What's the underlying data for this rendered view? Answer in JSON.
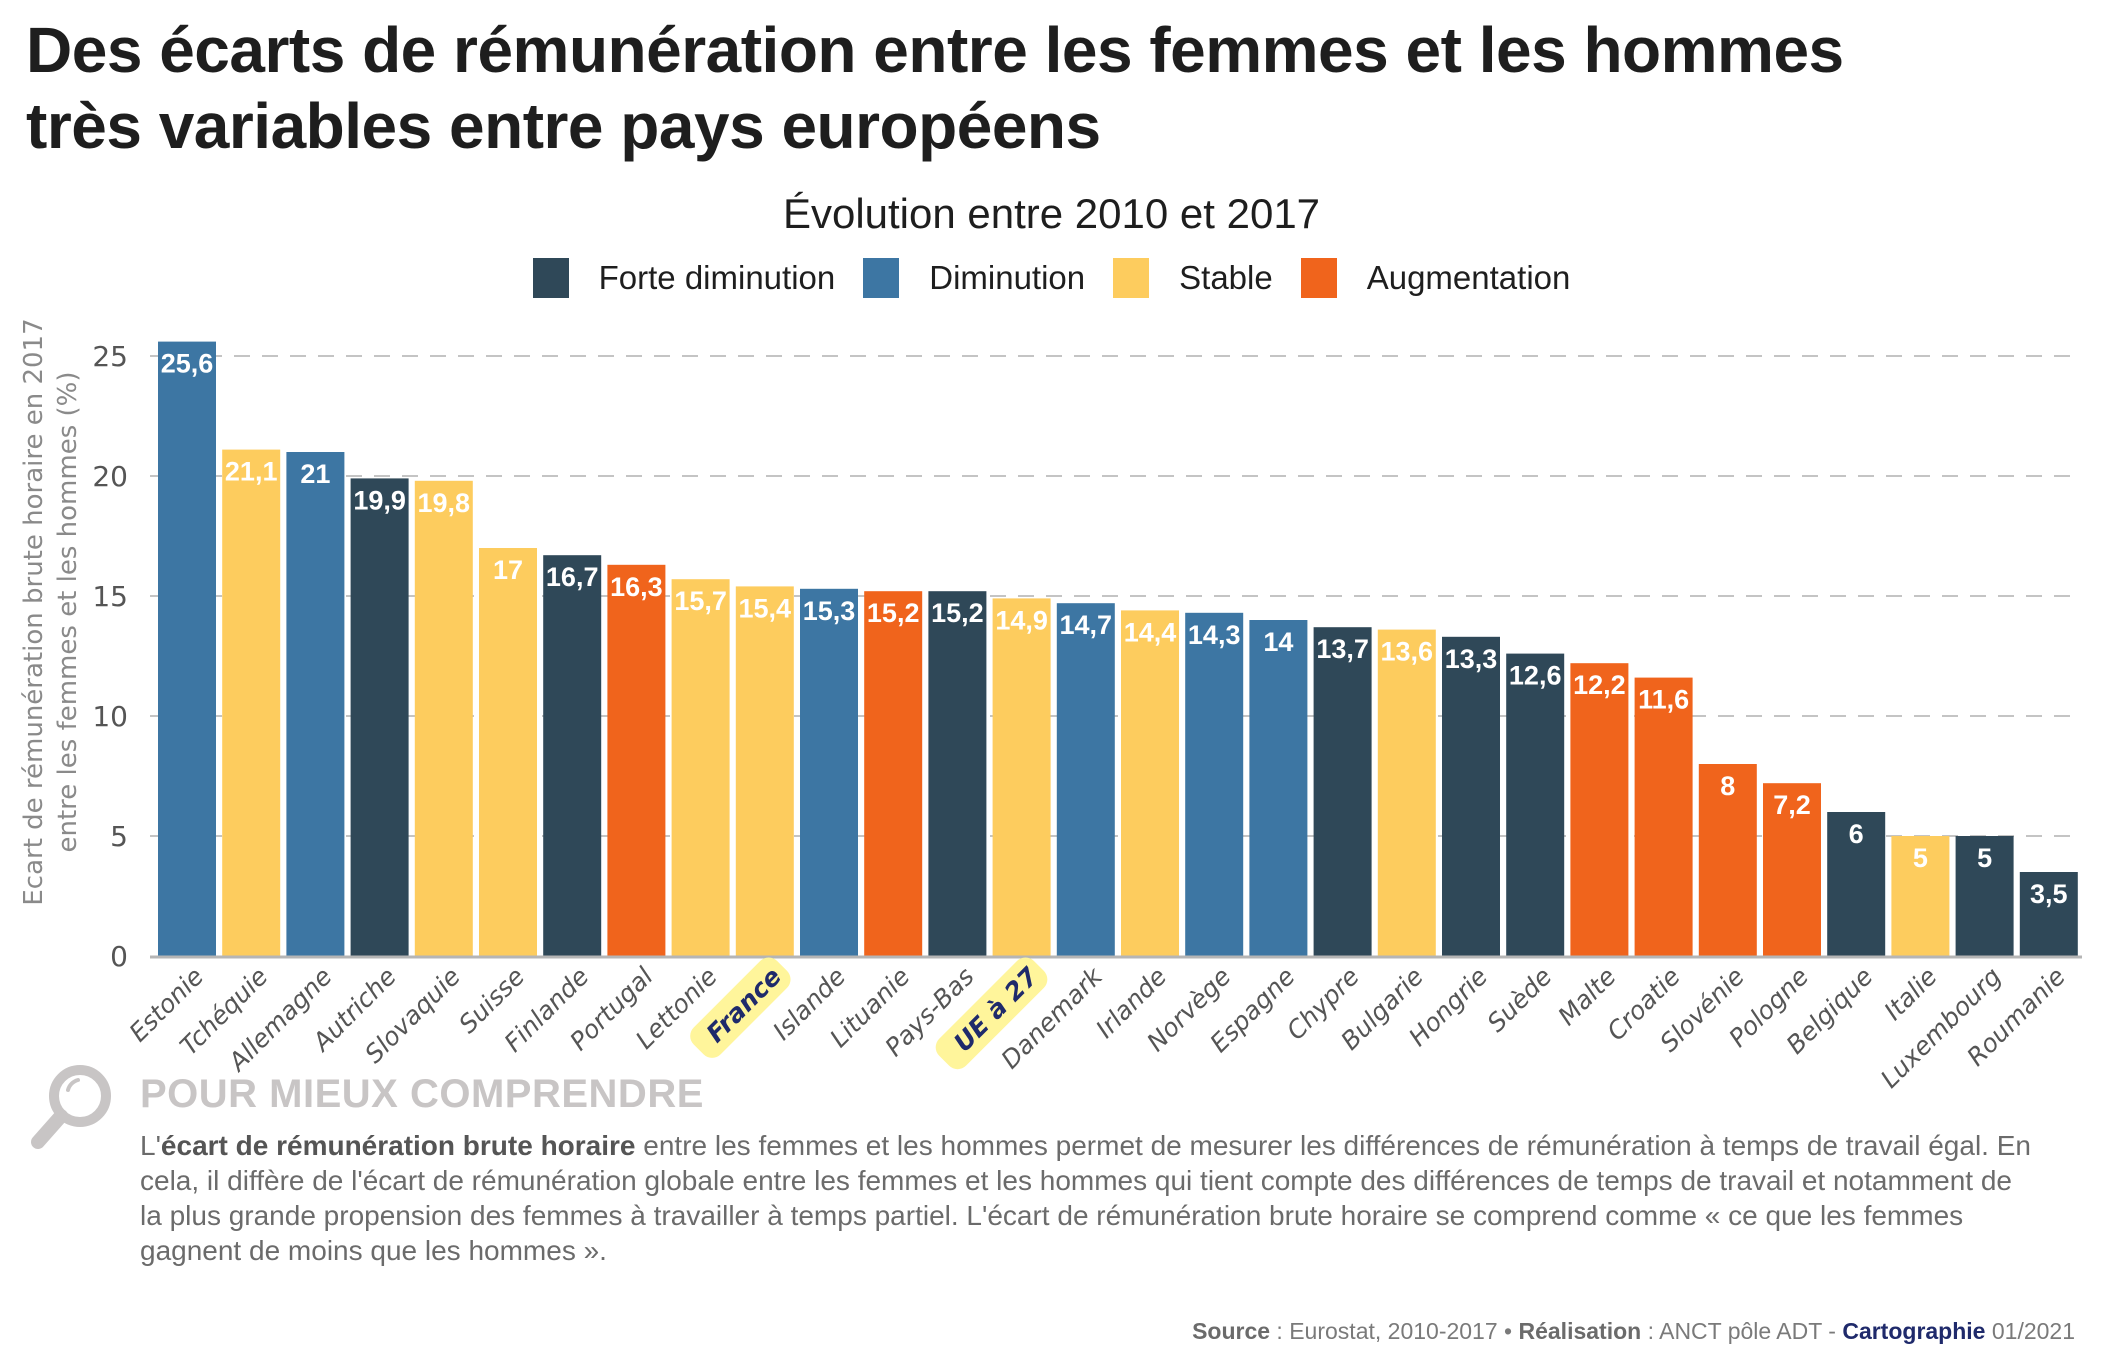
{
  "header": {
    "title_line1": "Des écarts de rémunération entre les femmes et les hommes",
    "title_line2": "très variables entre pays européens"
  },
  "chart_data": {
    "type": "bar",
    "title": "Évolution entre 2010 et 2017",
    "ylabel_line1": "Ecart de rémunération brute horaire en 2017",
    "ylabel_line2": "entre les femmes et les hommes (%)",
    "xlabel": "",
    "ylim": [
      0,
      25
    ],
    "yticks": [
      0,
      5,
      10,
      15,
      20,
      25
    ],
    "grid": "horizontal dashed",
    "legend_position": "top-center",
    "legend": [
      {
        "key": "forte_diminution",
        "label": "Forte diminution",
        "color": "#2f4858"
      },
      {
        "key": "diminution",
        "label": "Diminution",
        "color": "#3d76a3"
      },
      {
        "key": "stable",
        "label": "Stable",
        "color": "#fdcc5e"
      },
      {
        "key": "augmentation",
        "label": "Augmentation",
        "color": "#f0641c"
      }
    ],
    "highlight_color": "#fff59b",
    "highlight_text_color": "#1f2a6b",
    "categories": [
      "Estonie",
      "Tchéquie",
      "Allemagne",
      "Autriche",
      "Slovaquie",
      "Suisse",
      "Finlande",
      "Portugal",
      "Lettonie",
      "France",
      "Islande",
      "Lituanie",
      "Pays-Bas",
      "UE à 27",
      "Danemark",
      "Irlande",
      "Norvège",
      "Espagne",
      "Chypre",
      "Bulgarie",
      "Hongrie",
      "Suède",
      "Malte",
      "Croatie",
      "Slovénie",
      "Pologne",
      "Belgique",
      "Italie",
      "Luxembourg",
      "Roumanie"
    ],
    "values": [
      25.6,
      21.1,
      21,
      19.9,
      19.8,
      17,
      16.7,
      16.3,
      15.7,
      15.4,
      15.3,
      15.2,
      15.2,
      14.9,
      14.7,
      14.4,
      14.3,
      14,
      13.7,
      13.6,
      13.3,
      12.6,
      12.2,
      11.6,
      8,
      7.2,
      6,
      5,
      5,
      3.5
    ],
    "value_labels": [
      "25,6",
      "21,1",
      "21",
      "19,9",
      "19,8",
      "17",
      "16,7",
      "16,3",
      "15,7",
      "15,4",
      "15,3",
      "15,2",
      "15,2",
      "14,9",
      "14,7",
      "14,4",
      "14,3",
      "14",
      "13,7",
      "13,6",
      "13,3",
      "12,6",
      "12,2",
      "11,6",
      "8",
      "7,2",
      "6",
      "5",
      "5",
      "3,5"
    ],
    "evolution": [
      "diminution",
      "stable",
      "diminution",
      "forte_diminution",
      "stable",
      "stable",
      "forte_diminution",
      "augmentation",
      "stable",
      "stable",
      "diminution",
      "augmentation",
      "forte_diminution",
      "stable",
      "diminution",
      "stable",
      "diminution",
      "diminution",
      "forte_diminution",
      "stable",
      "forte_diminution",
      "forte_diminution",
      "augmentation",
      "augmentation",
      "augmentation",
      "augmentation",
      "forte_diminution",
      "stable",
      "forte_diminution",
      "forte_diminution"
    ],
    "highlighted": [
      "France",
      "UE à 27"
    ]
  },
  "info": {
    "icon": "magnifier-icon",
    "title": "POUR MIEUX COMPRENDRE",
    "body_prefix": "L'",
    "body_bold": "écart de rémunération brute horaire",
    "body_rest": " entre les femmes et les hommes permet de mesurer les différences de rémunération à temps de travail égal. En cela, il diffère de l'écart de rémunération globale entre les femmes et les hommes qui tient compte des différences de temps de travail et notamment de la plus grande propension des femmes à travailler à temps partiel. L'écart de rémunération brute horaire se comprend comme « ce que les femmes gagnent de moins que les hommes »."
  },
  "footer": {
    "source_label": "Source",
    "source_value": " : Eurostat, 2010-2017 • ",
    "realisation_label": "Réalisation",
    "realisation_value": " : ANCT pôle ADT - ",
    "cartographie_label": "Cartographie",
    "date": " 01/2021"
  }
}
